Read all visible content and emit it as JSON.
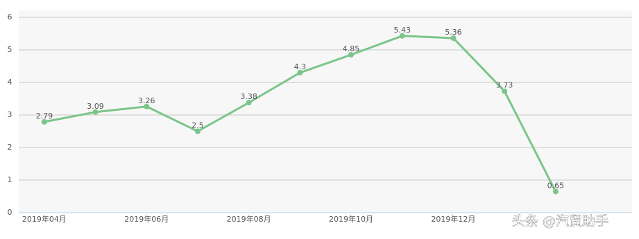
{
  "chart_data": {
    "type": "line",
    "categories": [
      "2019年04月",
      null,
      "2019年06月",
      null,
      "2019年08月",
      null,
      "2019年10月",
      null,
      "2019年12月",
      null,
      null
    ],
    "values": [
      2.79,
      3.09,
      3.26,
      2.5,
      3.38,
      4.3,
      4.85,
      5.43,
      5.36,
      3.73,
      0.65
    ],
    "color": "#7cc58a",
    "ylim": [
      0,
      6
    ],
    "yticks": [
      0,
      1,
      2,
      3,
      4,
      5,
      6
    ],
    "grid": true,
    "watermark": "头条 @汽贸助手"
  }
}
